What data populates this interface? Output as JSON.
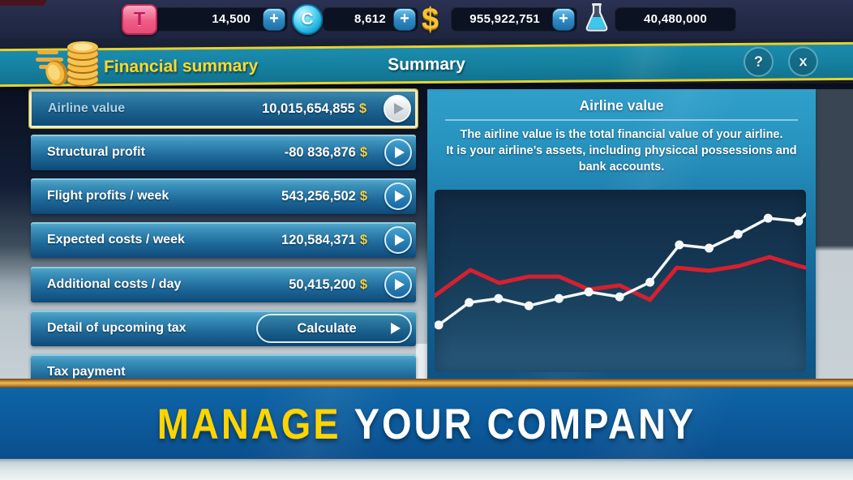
{
  "topbar": {
    "plus_label": "+",
    "counters": [
      {
        "icon": "travelcard-icon",
        "icon_glyph": "T",
        "value": "14,500",
        "has_plus": true
      },
      {
        "icon": "coin-c-icon",
        "icon_glyph": "C",
        "value": "8,612",
        "has_plus": true
      },
      {
        "icon": "dollar-icon",
        "icon_glyph": "$",
        "value": "955,922,751",
        "has_plus": true
      },
      {
        "icon": "flask-icon",
        "icon_glyph": "",
        "value": "40,480,000",
        "has_plus": false
      }
    ]
  },
  "header": {
    "screen_title": "Financial summary",
    "center_title": "Summary",
    "help_label": "?",
    "close_label": "x"
  },
  "rows": [
    {
      "label": "Airline value",
      "value": "10,015,654,855",
      "currency": "$",
      "selected": true
    },
    {
      "label": "Structural profit",
      "value": "-80 836,876",
      "currency": "$"
    },
    {
      "label": "Flight profits / week",
      "value": "543,256,502",
      "currency": "$"
    },
    {
      "label": "Expected costs / week",
      "value": "120,584,371",
      "currency": "$"
    },
    {
      "label": "Additional costs / day",
      "value": "50,415,200",
      "currency": "$"
    },
    {
      "label": "Detail of upcoming tax",
      "button_label": "Calculate"
    },
    {
      "label": "Tax payment"
    }
  ],
  "detail": {
    "title": "Airline value",
    "lines": [
      "The airline value is the total financial value of your airline.",
      "It is your airline’s assets, including physiccal possessions and",
      "bank accounts."
    ]
  },
  "chart_data": {
    "type": "line",
    "title": "Airline value trend (unlabeled sparkline)",
    "xlabel": "",
    "ylabel": "",
    "grid": false,
    "legend_position": "none",
    "x_range": [
      0,
      100
    ],
    "y_range": [
      0,
      100
    ],
    "series": [
      {
        "name": "airline-value-white",
        "color": "#F4F8FB",
        "markers": true,
        "skip_last_marker": true,
        "points": [
          {
            "x": 1.1,
            "y": 25.8
          },
          {
            "x": 9.3,
            "y": 38.2
          },
          {
            "x": 17.2,
            "y": 40.4
          },
          {
            "x": 25.4,
            "y": 36.4
          },
          {
            "x": 33.5,
            "y": 40.4
          },
          {
            "x": 41.5,
            "y": 44.0
          },
          {
            "x": 49.8,
            "y": 41.3
          },
          {
            "x": 58.0,
            "y": 49.3
          },
          {
            "x": 65.9,
            "y": 69.8
          },
          {
            "x": 73.9,
            "y": 68.0
          },
          {
            "x": 81.7,
            "y": 75.6
          },
          {
            "x": 89.8,
            "y": 84.4
          },
          {
            "x": 98.0,
            "y": 82.7
          },
          {
            "x": 100,
            "y": 86.7
          }
        ]
      },
      {
        "name": "reference-red",
        "color": "#D6202F",
        "markers": false,
        "points": [
          {
            "x": 0,
            "y": 41.8
          },
          {
            "x": 9.6,
            "y": 56.0
          },
          {
            "x": 17.4,
            "y": 48.9
          },
          {
            "x": 25.4,
            "y": 52.4
          },
          {
            "x": 33.5,
            "y": 52.4
          },
          {
            "x": 41.5,
            "y": 45.3
          },
          {
            "x": 49.8,
            "y": 47.6
          },
          {
            "x": 58.0,
            "y": 39.6
          },
          {
            "x": 65.2,
            "y": 57.3
          },
          {
            "x": 73.9,
            "y": 55.6
          },
          {
            "x": 82.0,
            "y": 58.2
          },
          {
            "x": 90.2,
            "y": 63.1
          },
          {
            "x": 98.0,
            "y": 58.2
          },
          {
            "x": 100,
            "y": 57.3
          }
        ]
      }
    ]
  },
  "banner": {
    "highlight": "MANAGE",
    "rest": "YOUR COMPANY"
  },
  "colors": {
    "accent_yellow": "#FFD92B",
    "header_teal": "#15809F",
    "row_blue_top": "#58AECF",
    "row_blue_bottom": "#0E4A77",
    "panel_blue": "#1A78A8",
    "chart_bg": "#153753",
    "line_white": "#F4F8FB",
    "line_red": "#D6202F",
    "gold_stripe": "#F0BC52",
    "banner_blue": "#0C599A",
    "banner_yellow": "#FFD400",
    "currency_gold": "#F7CF3F"
  }
}
